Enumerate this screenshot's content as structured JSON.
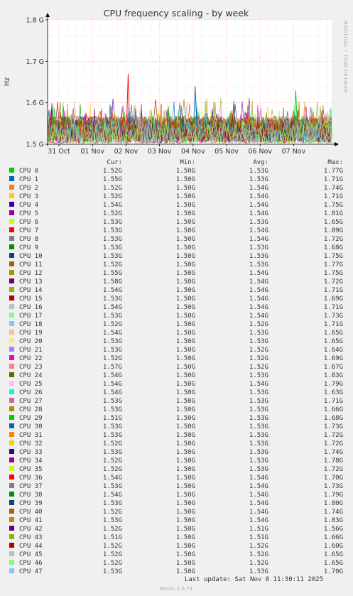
{
  "chart_data": {
    "type": "line",
    "title": "CPU frequency scaling - by week",
    "ylabel": "Hz",
    "y_ticks": [
      "1.8 G",
      "1.7 G",
      "1.6 G",
      "1.5 G"
    ],
    "y_tick_values": [
      1.8,
      1.7,
      1.6,
      1.5
    ],
    "ylim": [
      1.5,
      1.8
    ],
    "x_ticks": [
      "31 Oct",
      "01 Nov",
      "02 Nov",
      "03 Nov",
      "04 Nov",
      "05 Nov",
      "06 Nov",
      "07 Nov"
    ],
    "grid": true,
    "legend_placement": "bottom",
    "series_count": 48,
    "spikes_approx": [
      {
        "series": "CPU 7",
        "x": "02 Nov",
        "y": 1.67
      },
      {
        "series": "CPU 30",
        "x": "04 Nov",
        "y": 1.64
      },
      {
        "series": "CPU 0",
        "x": "07 Nov",
        "y": 1.63
      }
    ]
  },
  "side_label": "RRDTOOL / TOBI OETIKER",
  "table": {
    "headers": {
      "cur": "Cur:",
      "min": "Min:",
      "avg": "Avg:",
      "max": "Max:"
    },
    "rows": [
      {
        "name": "CPU 0",
        "color": "#00cc00",
        "cur": "1.52G",
        "min": "1.50G",
        "avg": "1.53G",
        "max": "1.77G"
      },
      {
        "name": "CPU 1",
        "color": "#0066b3",
        "cur": "1.55G",
        "min": "1.50G",
        "avg": "1.53G",
        "max": "1.71G"
      },
      {
        "name": "CPU 2",
        "color": "#ff8000",
        "cur": "1.52G",
        "min": "1.50G",
        "avg": "1.54G",
        "max": "1.74G"
      },
      {
        "name": "CPU 3",
        "color": "#ffcc00",
        "cur": "1.52G",
        "min": "1.50G",
        "avg": "1.54G",
        "max": "1.71G"
      },
      {
        "name": "CPU 4",
        "color": "#330099",
        "cur": "1.54G",
        "min": "1.50G",
        "avg": "1.54G",
        "max": "1.75G"
      },
      {
        "name": "CPU 5",
        "color": "#990099",
        "cur": "1.52G",
        "min": "1.50G",
        "avg": "1.54G",
        "max": "1.81G"
      },
      {
        "name": "CPU 6",
        "color": "#ccff00",
        "cur": "1.53G",
        "min": "1.50G",
        "avg": "1.53G",
        "max": "1.65G"
      },
      {
        "name": "CPU 7",
        "color": "#ff0000",
        "cur": "1.53G",
        "min": "1.50G",
        "avg": "1.54G",
        "max": "1.89G"
      },
      {
        "name": "CPU 8",
        "color": "#808080",
        "cur": "1.53G",
        "min": "1.50G",
        "avg": "1.54G",
        "max": "1.72G"
      },
      {
        "name": "CPU 9",
        "color": "#008f00",
        "cur": "1.53G",
        "min": "1.50G",
        "avg": "1.53G",
        "max": "1.68G"
      },
      {
        "name": "CPU 10",
        "color": "#00487d",
        "cur": "1.53G",
        "min": "1.50G",
        "avg": "1.53G",
        "max": "1.75G"
      },
      {
        "name": "CPU 11",
        "color": "#b35a00",
        "cur": "1.52G",
        "min": "1.50G",
        "avg": "1.53G",
        "max": "1.77G"
      },
      {
        "name": "CPU 12",
        "color": "#b38f00",
        "cur": "1.55G",
        "min": "1.50G",
        "avg": "1.54G",
        "max": "1.75G"
      },
      {
        "name": "CPU 13",
        "color": "#6b006b",
        "cur": "1.58G",
        "min": "1.50G",
        "avg": "1.54G",
        "max": "1.72G"
      },
      {
        "name": "CPU 14",
        "color": "#8fb300",
        "cur": "1.54G",
        "min": "1.50G",
        "avg": "1.54G",
        "max": "1.71G"
      },
      {
        "name": "CPU 15",
        "color": "#b30000",
        "cur": "1.53G",
        "min": "1.50G",
        "avg": "1.54G",
        "max": "1.69G"
      },
      {
        "name": "CPU 16",
        "color": "#bebebe",
        "cur": "1.54G",
        "min": "1.50G",
        "avg": "1.54G",
        "max": "1.71G"
      },
      {
        "name": "CPU 17",
        "color": "#80ff80",
        "cur": "1.53G",
        "min": "1.50G",
        "avg": "1.54G",
        "max": "1.73G"
      },
      {
        "name": "CPU 18",
        "color": "#80c9ff",
        "cur": "1.52G",
        "min": "1.50G",
        "avg": "1.52G",
        "max": "1.71G"
      },
      {
        "name": "CPU 19",
        "color": "#ffc080",
        "cur": "1.54G",
        "min": "1.50G",
        "avg": "1.53G",
        "max": "1.65G"
      },
      {
        "name": "CPU 20",
        "color": "#ffe680",
        "cur": "1.53G",
        "min": "1.50G",
        "avg": "1.53G",
        "max": "1.65G"
      },
      {
        "name": "CPU 21",
        "color": "#aa80ff",
        "cur": "1.53G",
        "min": "1.50G",
        "avg": "1.52G",
        "max": "1.64G"
      },
      {
        "name": "CPU 22",
        "color": "#ee00cc",
        "cur": "1.52G",
        "min": "1.50G",
        "avg": "1.52G",
        "max": "1.69G"
      },
      {
        "name": "CPU 23",
        "color": "#ff8080",
        "cur": "1.57G",
        "min": "1.50G",
        "avg": "1.52G",
        "max": "1.67G"
      },
      {
        "name": "CPU 24",
        "color": "#666600",
        "cur": "1.54G",
        "min": "1.50G",
        "avg": "1.53G",
        "max": "1.83G"
      },
      {
        "name": "CPU 25",
        "color": "#ffbfff",
        "cur": "1.54G",
        "min": "1.50G",
        "avg": "1.54G",
        "max": "1.79G"
      },
      {
        "name": "CPU 26",
        "color": "#00ffcc",
        "cur": "1.54G",
        "min": "1.50G",
        "avg": "1.53G",
        "max": "1.63G"
      },
      {
        "name": "CPU 27",
        "color": "#cc6699",
        "cur": "1.53G",
        "min": "1.50G",
        "avg": "1.53G",
        "max": "1.71G"
      },
      {
        "name": "CPU 28",
        "color": "#999900",
        "cur": "1.53G",
        "min": "1.50G",
        "avg": "1.53G",
        "max": "1.66G"
      },
      {
        "name": "CPU 29",
        "color": "#00cc00",
        "cur": "1.51G",
        "min": "1.50G",
        "avg": "1.53G",
        "max": "1.68G"
      },
      {
        "name": "CPU 30",
        "color": "#0066b3",
        "cur": "1.53G",
        "min": "1.50G",
        "avg": "1.53G",
        "max": "1.73G"
      },
      {
        "name": "CPU 31",
        "color": "#ff8000",
        "cur": "1.53G",
        "min": "1.50G",
        "avg": "1.53G",
        "max": "1.72G"
      },
      {
        "name": "CPU 32",
        "color": "#ffcc00",
        "cur": "1.52G",
        "min": "1.50G",
        "avg": "1.53G",
        "max": "1.72G"
      },
      {
        "name": "CPU 33",
        "color": "#330099",
        "cur": "1.53G",
        "min": "1.50G",
        "avg": "1.53G",
        "max": "1.74G"
      },
      {
        "name": "CPU 34",
        "color": "#990099",
        "cur": "1.52G",
        "min": "1.50G",
        "avg": "1.53G",
        "max": "1.78G"
      },
      {
        "name": "CPU 35",
        "color": "#ccff00",
        "cur": "1.52G",
        "min": "1.50G",
        "avg": "1.53G",
        "max": "1.72G"
      },
      {
        "name": "CPU 36",
        "color": "#ff0000",
        "cur": "1.54G",
        "min": "1.50G",
        "avg": "1.54G",
        "max": "1.70G"
      },
      {
        "name": "CPU 37",
        "color": "#808080",
        "cur": "1.53G",
        "min": "1.50G",
        "avg": "1.54G",
        "max": "1.73G"
      },
      {
        "name": "CPU 38",
        "color": "#008f00",
        "cur": "1.54G",
        "min": "1.50G",
        "avg": "1.54G",
        "max": "1.79G"
      },
      {
        "name": "CPU 39",
        "color": "#00487d",
        "cur": "1.53G",
        "min": "1.50G",
        "avg": "1.54G",
        "max": "1.80G"
      },
      {
        "name": "CPU 40",
        "color": "#b35a00",
        "cur": "1.52G",
        "min": "1.50G",
        "avg": "1.54G",
        "max": "1.74G"
      },
      {
        "name": "CPU 41",
        "color": "#b38f00",
        "cur": "1.53G",
        "min": "1.50G",
        "avg": "1.54G",
        "max": "1.83G"
      },
      {
        "name": "CPU 42",
        "color": "#6b006b",
        "cur": "1.52G",
        "min": "1.50G",
        "avg": "1.51G",
        "max": "1.56G"
      },
      {
        "name": "CPU 43",
        "color": "#8fb300",
        "cur": "1.51G",
        "min": "1.50G",
        "avg": "1.51G",
        "max": "1.66G"
      },
      {
        "name": "CPU 44",
        "color": "#b30000",
        "cur": "1.52G",
        "min": "1.50G",
        "avg": "1.52G",
        "max": "1.60G"
      },
      {
        "name": "CPU 45",
        "color": "#bebebe",
        "cur": "1.52G",
        "min": "1.50G",
        "avg": "1.52G",
        "max": "1.65G"
      },
      {
        "name": "CPU 46",
        "color": "#80ff80",
        "cur": "1.52G",
        "min": "1.50G",
        "avg": "1.52G",
        "max": "1.65G"
      },
      {
        "name": "CPU 47",
        "color": "#80c9ff",
        "cur": "1.53G",
        "min": "1.50G",
        "avg": "1.53G",
        "max": "1.70G"
      }
    ]
  },
  "last_update": "Last update: Sat Nov  8 11:30:11 2025",
  "munin_version": "Munin 2.0.73"
}
